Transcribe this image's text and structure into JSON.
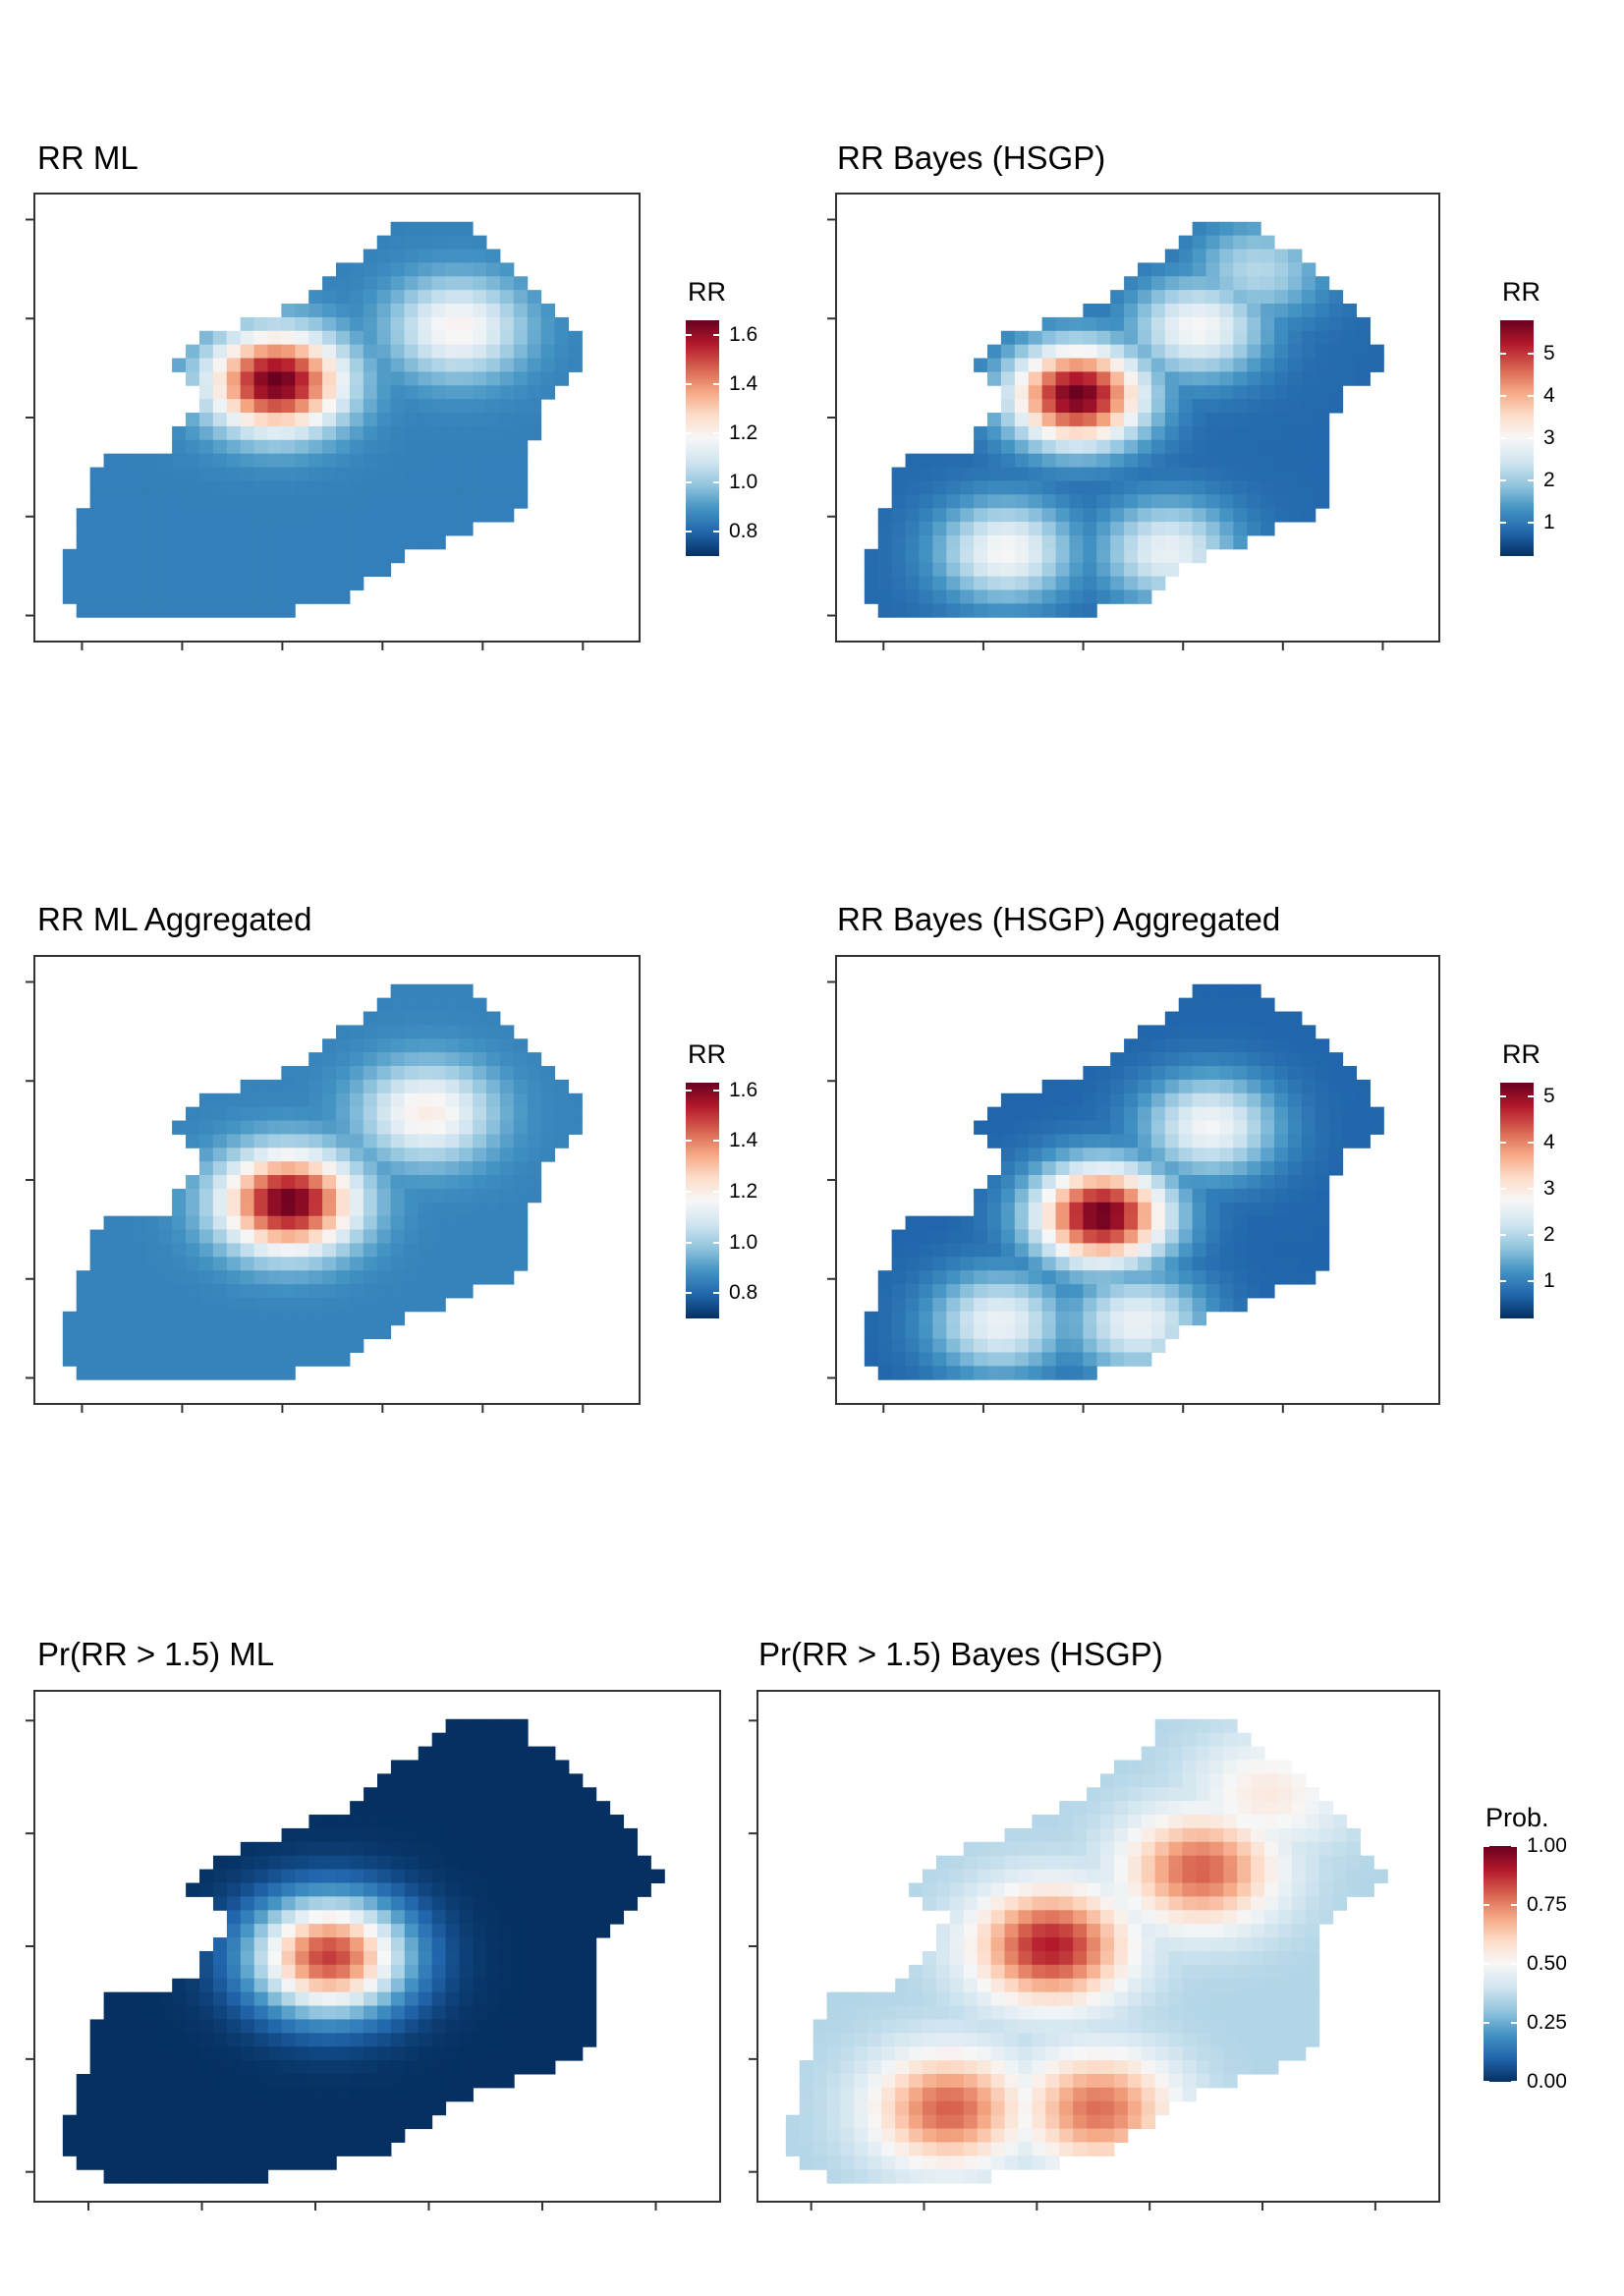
{
  "palette": [
    "#053061",
    "#2166ac",
    "#4393c3",
    "#92c5de",
    "#d1e5f0",
    "#f7f7f7",
    "#fddbc7",
    "#f4a582",
    "#d6604d",
    "#b2182b",
    "#67001f"
  ],
  "chart_data": [
    {
      "type": "heatmap",
      "title": "RR ML",
      "legend_title": "RR",
      "legend_ticks": [
        "0.8",
        "1.0",
        "1.2",
        "1.4",
        "1.6"
      ],
      "scale": [
        0.7,
        1.66
      ],
      "hotspots": [
        {
          "x": 0.4,
          "y": 0.42,
          "value": 1.66
        },
        {
          "x": 0.7,
          "y": 0.3,
          "value": 1.2
        }
      ],
      "baseline": 0.85
    },
    {
      "type": "heatmap",
      "title": "RR Bayes (HSGP)",
      "legend_title": "RR",
      "legend_ticks": [
        "1",
        "2",
        "3",
        "4",
        "5"
      ],
      "scale": [
        0.2,
        5.8
      ],
      "hotspots": [
        {
          "x": 0.4,
          "y": 0.45,
          "value": 5.8
        },
        {
          "x": 0.6,
          "y": 0.3,
          "value": 3.0
        },
        {
          "x": 0.28,
          "y": 0.8,
          "value": 3.0
        },
        {
          "x": 0.55,
          "y": 0.8,
          "value": 2.8
        },
        {
          "x": 0.7,
          "y": 0.17,
          "value": 2.2
        }
      ],
      "baseline": 0.8
    },
    {
      "type": "heatmap",
      "title": "RR ML Aggregated",
      "legend_title": "RR",
      "legend_ticks": [
        "0.8",
        "1.0",
        "1.2",
        "1.4",
        "1.6"
      ],
      "scale": [
        0.7,
        1.63
      ],
      "hotspots": [
        {
          "x": 0.42,
          "y": 0.55,
          "value": 1.63
        },
        {
          "x": 0.65,
          "y": 0.35,
          "value": 1.2
        }
      ],
      "baseline": 0.85
    },
    {
      "type": "heatmap",
      "title": "RR Bayes (HSGP) Aggregated",
      "legend_title": "RR",
      "legend_ticks": [
        "1",
        "2",
        "3",
        "4",
        "5"
      ],
      "scale": [
        0.2,
        5.3
      ],
      "hotspots": [
        {
          "x": 0.44,
          "y": 0.58,
          "value": 5.3
        },
        {
          "x": 0.62,
          "y": 0.38,
          "value": 2.7
        },
        {
          "x": 0.27,
          "y": 0.82,
          "value": 2.6
        },
        {
          "x": 0.5,
          "y": 0.82,
          "value": 2.6
        }
      ],
      "baseline": 0.7
    },
    {
      "type": "heatmap",
      "title": "Pr(RR > 1.5) ML",
      "legend_title": "",
      "legend_ticks": [],
      "scale": [
        0.0,
        1.0
      ],
      "hotspots": [
        {
          "x": 0.43,
          "y": 0.52,
          "value": 0.85
        }
      ],
      "baseline": 0.0
    },
    {
      "type": "heatmap",
      "title": "Pr(RR > 1.5) Bayes (HSGP)",
      "legend_title": "Prob.",
      "legend_ticks": [
        "0.00",
        "0.25",
        "0.50",
        "0.75",
        "1.00"
      ],
      "scale": [
        0.0,
        1.0
      ],
      "hotspots": [
        {
          "x": 0.43,
          "y": 0.5,
          "value": 0.9
        },
        {
          "x": 0.65,
          "y": 0.35,
          "value": 0.8
        },
        {
          "x": 0.28,
          "y": 0.82,
          "value": 0.8
        },
        {
          "x": 0.5,
          "y": 0.82,
          "value": 0.78
        },
        {
          "x": 0.75,
          "y": 0.2,
          "value": 0.55
        }
      ],
      "baseline": 0.35
    }
  ]
}
